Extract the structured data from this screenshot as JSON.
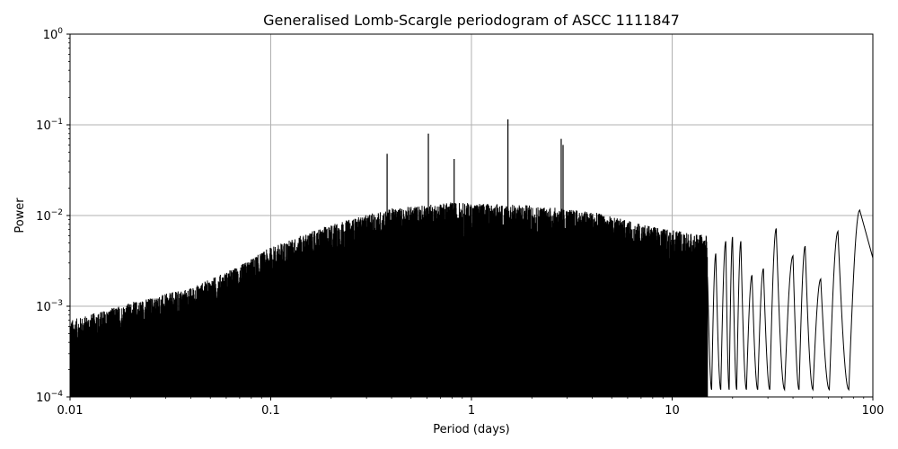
{
  "chart_data": {
    "type": "line",
    "title": "Generalised Lomb-Scargle periodogram of ASCC 1111847",
    "xlabel": "Period (days)",
    "ylabel": "Power",
    "xscale": "log",
    "yscale": "log",
    "xlim": [
      0.01,
      100
    ],
    "ylim": [
      0.0001,
      1
    ],
    "grid": true,
    "line_color": "#000000",
    "grid_color": "#b0b0b0",
    "x_ticks": [
      {
        "value": 0.01,
        "label": "0.01"
      },
      {
        "value": 0.1,
        "label": "0.1"
      },
      {
        "value": 1,
        "label": "1"
      },
      {
        "value": 10,
        "label": "10"
      },
      {
        "value": 100,
        "label": "100"
      }
    ],
    "y_ticks": [
      {
        "value": 0.0001,
        "base": "10",
        "exp": "−4"
      },
      {
        "value": 0.001,
        "base": "10",
        "exp": "−3"
      },
      {
        "value": 0.01,
        "base": "10",
        "exp": "−2"
      },
      {
        "value": 0.1,
        "base": "10",
        "exp": "−1"
      },
      {
        "value": 1,
        "base": "10",
        "exp": "0"
      }
    ],
    "peaks": [
      {
        "period": 0.38,
        "power": 0.048
      },
      {
        "period": 0.61,
        "power": 0.08
      },
      {
        "period": 0.82,
        "power": 0.042
      },
      {
        "period": 1.52,
        "power": 0.115
      },
      {
        "period": 2.8,
        "power": 0.07
      },
      {
        "period": 2.86,
        "power": 0.06
      },
      {
        "period": 33,
        "power": 0.0072
      },
      {
        "period": 86,
        "power": 0.0115
      }
    ],
    "envelope": [
      {
        "period": 0.01,
        "power": 0.0007
      },
      {
        "period": 0.02,
        "power": 0.0011
      },
      {
        "period": 0.04,
        "power": 0.0016
      },
      {
        "period": 0.07,
        "power": 0.0028
      },
      {
        "period": 0.1,
        "power": 0.0045
      },
      {
        "period": 0.2,
        "power": 0.008
      },
      {
        "period": 0.4,
        "power": 0.012
      },
      {
        "period": 0.8,
        "power": 0.014
      },
      {
        "period": 2,
        "power": 0.013
      },
      {
        "period": 4,
        "power": 0.011
      },
      {
        "period": 8,
        "power": 0.0075
      },
      {
        "period": 15,
        "power": 0.006
      }
    ],
    "long_period_lobes": [
      {
        "period": 16.5,
        "power": 0.0038
      },
      {
        "period": 18.5,
        "power": 0.0052
      },
      {
        "period": 20.0,
        "power": 0.0058
      },
      {
        "period": 22.0,
        "power": 0.0052
      },
      {
        "period": 25.0,
        "power": 0.0022
      },
      {
        "period": 28.5,
        "power": 0.0026
      },
      {
        "period": 33.0,
        "power": 0.0072
      },
      {
        "period": 40.0,
        "power": 0.0036
      },
      {
        "period": 46.0,
        "power": 0.0046
      },
      {
        "period": 55.0,
        "power": 0.002
      },
      {
        "period": 67.0,
        "power": 0.0067
      },
      {
        "period": 86.0,
        "power": 0.0115
      }
    ]
  }
}
